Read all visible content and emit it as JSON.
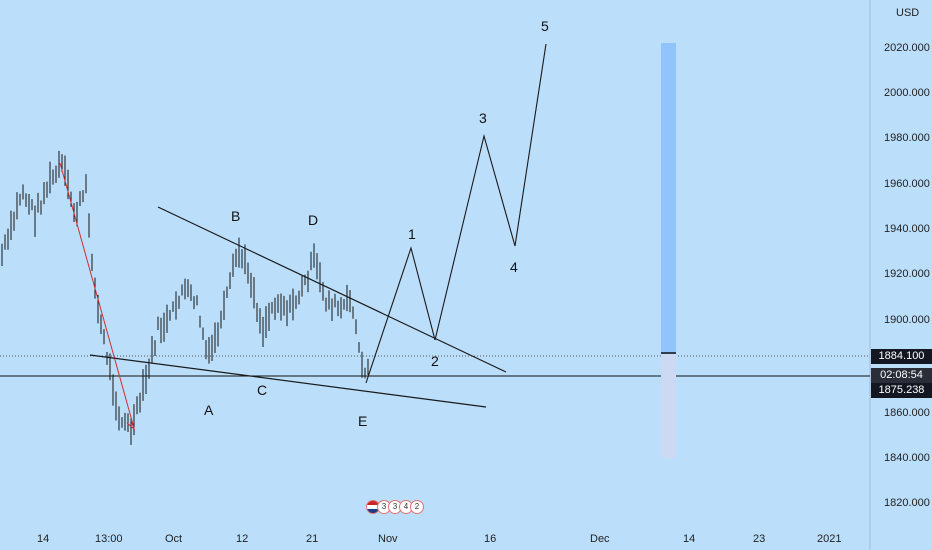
{
  "currency": "USD",
  "price_axis": {
    "ticks": [
      "2020.000",
      "2000.000",
      "1980.000",
      "1960.000",
      "1940.000",
      "1920.000",
      "1900.000",
      "1860.000",
      "1840.000",
      "1820.000"
    ],
    "tags": {
      "upper": "1884.100",
      "timer": "02:08:54",
      "lower": "1875.238"
    }
  },
  "time_axis": {
    "ticks": [
      "14",
      "13:00",
      "Oct",
      "12",
      "21",
      "Nov",
      "16",
      "Dec",
      "14",
      "23",
      "2021"
    ]
  },
  "wave_labels": {
    "A": "A",
    "B": "B",
    "C": "C",
    "D": "D",
    "E": "E",
    "w1": "1",
    "w2": "2",
    "w3": "3",
    "w4": "4",
    "w5": "5"
  },
  "events": {
    "items": [
      "3",
      "3",
      "4",
      "2"
    ]
  },
  "colors": {
    "background": "#bbdefb",
    "bars": "#141414",
    "projection_top": "#90c4fa",
    "projection_bottom": "#cdd9f2",
    "drawing": "#1a1a1a",
    "red_line": "#d32f2f"
  }
}
